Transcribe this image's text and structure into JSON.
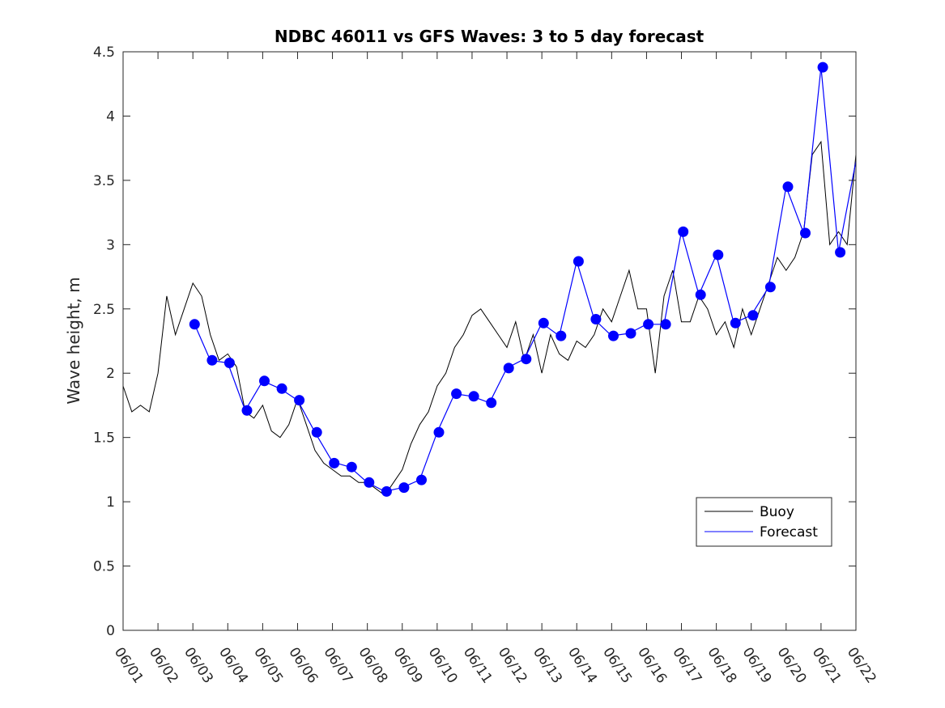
{
  "chart_data": {
    "type": "line",
    "title": "NDBC 46011 vs GFS Waves: 3 to 5 day forecast",
    "xlabel": "",
    "ylabel": "Wave height, m",
    "x_tick_labels": [
      "06/01",
      "06/02",
      "06/03",
      "06/04",
      "06/05",
      "06/06",
      "06/07",
      "06/08",
      "06/09",
      "06/10",
      "06/11",
      "06/12",
      "06/13",
      "06/14",
      "06/15",
      "06/16",
      "06/17",
      "06/18",
      "06/19",
      "06/20",
      "06/21",
      "06/22"
    ],
    "xlim_days": [
      0,
      21
    ],
    "y_ticks": [
      "0",
      "0.5",
      "1",
      "1.5",
      "2",
      "2.5",
      "3",
      "3.5",
      "4",
      "4.5"
    ],
    "ylim": [
      0,
      4.5
    ],
    "grid": false,
    "legend_position": "lower-right",
    "colors": {
      "buoy": "#000000",
      "forecast": "#0000ff",
      "axes": "#262626"
    },
    "series": [
      {
        "name": "Buoy",
        "x": [
          0.0,
          0.25,
          0.5,
          0.75,
          1.0,
          1.25,
          1.5,
          1.75,
          2.0,
          2.25,
          2.5,
          2.75,
          3.0,
          3.25,
          3.5,
          3.75,
          4.0,
          4.25,
          4.5,
          4.75,
          5.0,
          5.25,
          5.5,
          5.75,
          6.0,
          6.25,
          6.5,
          6.75,
          7.0,
          7.25,
          7.5,
          7.75,
          8.0,
          8.25,
          8.5,
          8.75,
          9.0,
          9.25,
          9.5,
          9.75,
          10.0,
          10.25,
          10.5,
          10.75,
          11.0,
          11.25,
          11.5,
          11.75,
          12.0,
          12.25,
          12.5,
          12.75,
          13.0,
          13.25,
          13.5,
          13.75,
          14.0,
          14.25,
          14.5,
          14.75,
          15.0,
          15.25,
          15.5,
          15.75,
          16.0,
          16.25,
          16.5,
          16.75,
          17.0,
          17.25,
          17.5,
          17.75,
          18.0,
          18.25,
          18.5,
          18.75,
          19.0,
          19.25,
          19.5,
          19.75,
          20.0,
          20.25,
          20.5,
          20.75,
          21.0
        ],
        "values": [
          1.9,
          1.7,
          1.75,
          1.7,
          2.0,
          2.6,
          2.3,
          2.5,
          2.7,
          2.6,
          2.3,
          2.1,
          2.15,
          2.05,
          1.7,
          1.65,
          1.75,
          1.55,
          1.5,
          1.6,
          1.8,
          1.6,
          1.4,
          1.3,
          1.25,
          1.2,
          1.2,
          1.15,
          1.15,
          1.1,
          1.05,
          1.15,
          1.25,
          1.45,
          1.6,
          1.7,
          1.9,
          2.0,
          2.2,
          2.3,
          2.45,
          2.5,
          2.4,
          2.3,
          2.2,
          2.4,
          2.1,
          2.3,
          2.0,
          2.3,
          2.15,
          2.1,
          2.25,
          2.2,
          2.3,
          2.5,
          2.4,
          2.6,
          2.8,
          2.5,
          2.5,
          2.0,
          2.6,
          2.8,
          2.4,
          2.4,
          2.6,
          2.5,
          2.3,
          2.4,
          2.2,
          2.5,
          2.3,
          2.5,
          2.7,
          2.9,
          2.8,
          2.9,
          3.1,
          3.7,
          3.8,
          3.0,
          3.1,
          3.0,
          3.7
        ]
      },
      {
        "name": "Forecast",
        "x": [
          2.05,
          2.5,
          3.0,
          3.5,
          4.0,
          4.5,
          5.0,
          5.5,
          6.0,
          6.5,
          7.0,
          7.5,
          8.0,
          8.5,
          9.0,
          9.5,
          10.0,
          10.5,
          11.0,
          11.5,
          12.0,
          12.5,
          13.0,
          13.5,
          14.0,
          14.5,
          15.0,
          15.5,
          16.0,
          16.5,
          17.0,
          17.5,
          18.0,
          18.5,
          19.0,
          19.5,
          20.0,
          20.5,
          21.0
        ],
        "values": [
          2.38,
          2.1,
          2.08,
          1.71,
          1.94,
          1.88,
          1.79,
          1.54,
          1.31,
          1.27,
          1.15,
          1.08,
          1.11,
          1.17,
          1.54,
          1.84,
          1.82,
          1.77,
          2.04,
          2.11,
          2.39,
          2.29,
          2.87,
          2.42,
          2.29,
          2.31,
          2.38,
          2.38,
          3.1,
          2.61,
          2.92,
          2.39,
          2.45,
          2.67,
          3.45,
          3.09,
          4.38,
          2.94,
          3.65
        ]
      }
    ],
    "forecast_markers": {
      "x": [
        2.05,
        2.55,
        3.05,
        3.55,
        4.05,
        4.55,
        5.05,
        5.55,
        6.05,
        6.55,
        7.05,
        7.55,
        8.05,
        8.55,
        9.05,
        9.55,
        10.05,
        10.55,
        11.05,
        11.55,
        12.05,
        12.55,
        13.05,
        13.55,
        14.05,
        14.55,
        15.05,
        15.55,
        16.05,
        16.55,
        17.05,
        17.55,
        18.05,
        18.55,
        19.05,
        19.55,
        20.05,
        20.55
      ],
      "values": [
        2.38,
        2.1,
        2.08,
        1.71,
        1.94,
        1.88,
        1.79,
        1.54,
        1.3,
        1.27,
        1.15,
        1.08,
        1.11,
        1.17,
        1.54,
        1.84,
        1.82,
        1.77,
        2.04,
        2.11,
        2.39,
        2.29,
        2.87,
        2.42,
        2.29,
        2.31,
        2.38,
        2.38,
        3.1,
        2.61,
        2.92,
        2.39,
        2.45,
        2.67,
        3.45,
        3.09,
        4.38,
        2.94
      ]
    }
  }
}
